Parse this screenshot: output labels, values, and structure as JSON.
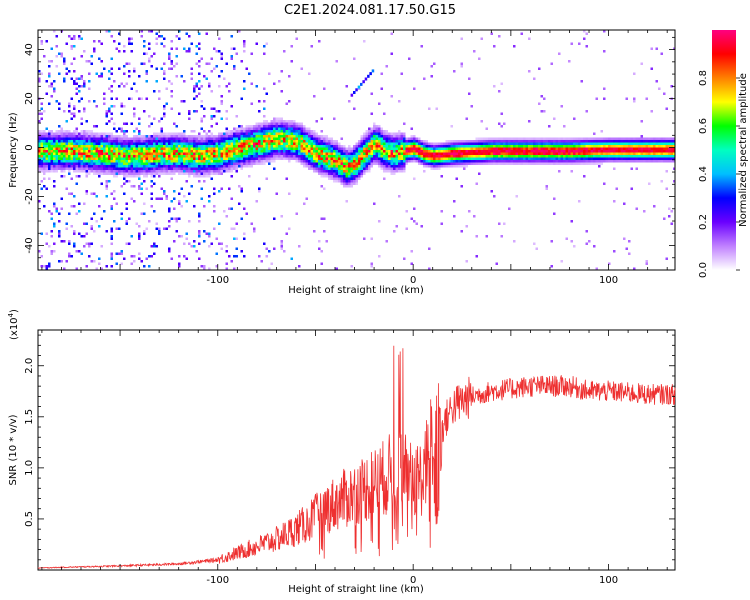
{
  "title": "C2E1.2024.081.17.50.G15",
  "chart_data": [
    {
      "type": "heatmap",
      "xlabel": "Height of straight line (km)",
      "ylabel": "Frequency (Hz)",
      "xlim": [
        -192,
        134
      ],
      "ylim": [
        -50,
        48
      ],
      "xticks": [
        "-100",
        "0",
        "100"
      ],
      "xtick_values": [
        -100,
        0,
        100
      ],
      "yticks": [
        "-40",
        "-20",
        "0",
        "20",
        "40"
      ],
      "ytick_values": [
        -40,
        -20,
        0,
        20,
        40
      ],
      "colorbar": {
        "label": "Normalized spectral amplitude",
        "ticks": [
          "0.0",
          "0.2",
          "0.4",
          "0.6",
          "0.8"
        ],
        "tick_values": [
          0.0,
          0.2,
          0.4,
          0.6,
          0.8
        ],
        "range": [
          0,
          1
        ],
        "colors": [
          "#ffffff",
          "#c080ff",
          "#6a00ff",
          "#0000ff",
          "#00bfff",
          "#00ffc0",
          "#00ff00",
          "#ffff00",
          "#ff8000",
          "#ff0000",
          "#ff0080"
        ]
      },
      "ridge": {
        "x": [
          -192,
          -175,
          -160,
          -150,
          -140,
          -130,
          -120,
          -110,
          -100,
          -90,
          -80,
          -70,
          -60,
          -50,
          -40,
          -34,
          -30,
          -25,
          -20,
          -15,
          -10,
          -5,
          0,
          5,
          10,
          20,
          40,
          60,
          80,
          100,
          120,
          134
        ],
        "frequency": [
          -1,
          -1,
          -2,
          -3,
          -3,
          -2,
          -2,
          -3,
          -2,
          0,
          2,
          4,
          3,
          -2,
          -5,
          -8,
          -6,
          -2,
          2,
          -1,
          -2,
          -1,
          0,
          -2,
          -3,
          -2,
          -1,
          -1,
          -1,
          -0.5,
          -0.5,
          -0.5
        ]
      }
    },
    {
      "type": "line",
      "xlabel": "Height of straight line (km)",
      "ylabel": "SNR (10 * v/v)",
      "multiplier": "(x10",
      "multiplier_exp": "4",
      "multiplier_close": ")",
      "xlim": [
        -192,
        134
      ],
      "ylim": [
        0,
        2.35
      ],
      "xticks": [
        "-100",
        "0",
        "100"
      ],
      "xtick_values": [
        -100,
        0,
        100
      ],
      "yticks": [
        "0.5",
        "1.0",
        "1.5",
        "2.0"
      ],
      "ytick_values": [
        0.5,
        1.0,
        1.5,
        2.0
      ],
      "color": "#ee3030",
      "envelope": {
        "x": [
          -192,
          -150,
          -120,
          -100,
          -85,
          -70,
          -55,
          -45,
          -35,
          -25,
          -15,
          -8,
          0,
          5,
          10,
          15,
          20,
          30,
          40,
          60,
          80,
          90,
          100,
          120,
          134
        ],
        "y": [
          0.02,
          0.04,
          0.06,
          0.1,
          0.2,
          0.3,
          0.45,
          0.6,
          0.7,
          0.8,
          0.9,
          1.0,
          0.9,
          0.9,
          1.3,
          1.4,
          1.6,
          1.7,
          1.75,
          1.8,
          1.8,
          1.75,
          1.75,
          1.72,
          1.72
        ]
      }
    }
  ]
}
